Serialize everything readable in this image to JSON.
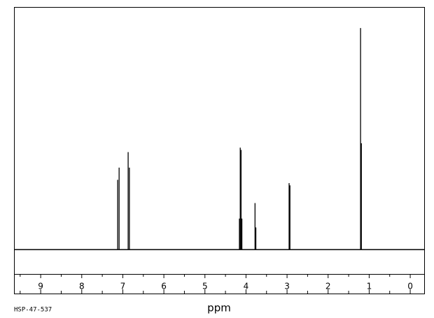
{
  "chart_data": {
    "type": "spectrum",
    "xlabel": "ppm",
    "annotation": "HSP-47-537",
    "x": [
      7.125,
      7.09,
      6.87,
      6.84,
      4.16,
      4.14,
      4.12,
      4.1,
      3.78,
      3.76,
      2.95,
      2.93,
      1.21,
      1.19
    ],
    "values": [
      31.5,
      37,
      44,
      37,
      14,
      46,
      45,
      14,
      21,
      10,
      30,
      29,
      100,
      48
    ],
    "color": "#000000",
    "xlim": [
      9.65,
      -0.34
    ],
    "ylim": [
      -11,
      109.5
    ],
    "xticks": [
      9,
      8,
      7,
      6,
      5,
      4,
      3,
      2,
      1,
      0
    ],
    "xminorticks": [
      9.5,
      8.5,
      7.5,
      6.5,
      5.5,
      4.5,
      3.5,
      2.5,
      1.5,
      0.5
    ]
  }
}
